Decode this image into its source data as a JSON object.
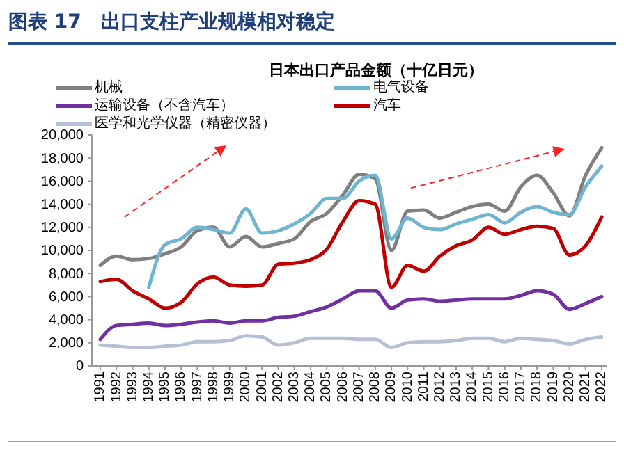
{
  "chart_data": {
    "type": "line",
    "title": "图表 17　出口支柱产业规模相对稳定",
    "subtitle": "日本出口产品金额（十亿日元）",
    "categories": [
      "1991",
      "1992",
      "1993",
      "1994",
      "1995",
      "1996",
      "1997",
      "1998",
      "1999",
      "2000",
      "2001",
      "2002",
      "2003",
      "2004",
      "2005",
      "2006",
      "2007",
      "2008",
      "2009",
      "2010",
      "2011",
      "2012",
      "2013",
      "2014",
      "2015",
      "2016",
      "2017",
      "2018",
      "2019",
      "2020",
      "2021",
      "2022"
    ],
    "series": [
      {
        "name": "机械",
        "color": "#7f7f7f",
        "values": [
          8700,
          9500,
          9200,
          9300,
          9700,
          10300,
          11700,
          12000,
          10300,
          11200,
          10300,
          10600,
          11000,
          12500,
          13200,
          14800,
          16600,
          16200,
          10000,
          13400,
          13500,
          12800,
          13300,
          13800,
          14000,
          13400,
          15500,
          16500,
          15000,
          13000,
          16500,
          18900
        ]
      },
      {
        "name": "电气设备",
        "color": "#6fb4d3",
        "values": [
          null,
          null,
          null,
          6800,
          10500,
          11000,
          12000,
          11800,
          11500,
          13600,
          11500,
          11700,
          12300,
          13200,
          14500,
          14500,
          16000,
          16500,
          11000,
          12800,
          12000,
          11800,
          12300,
          12700,
          13100,
          12400,
          13300,
          13800,
          13300,
          13100,
          15500,
          17300
        ]
      },
      {
        "name": "运输设备（不含汽车）",
        "color": "#7030a0",
        "values": [
          2300,
          3500,
          3600,
          3700,
          3500,
          3600,
          3800,
          3900,
          3700,
          3900,
          3900,
          4200,
          4300,
          4700,
          5100,
          5800,
          6500,
          6500,
          5000,
          5700,
          5800,
          5600,
          5700,
          5800,
          5800,
          5800,
          6100,
          6500,
          6200,
          4900,
          5400,
          6000
        ]
      },
      {
        "name": "汽车",
        "color": "#c00000",
        "values": [
          7300,
          7500,
          6500,
          5800,
          5000,
          5500,
          7100,
          7700,
          7000,
          6900,
          7000,
          8800,
          8900,
          9200,
          10100,
          12500,
          14300,
          14000,
          6800,
          8700,
          8200,
          9500,
          10400,
          10900,
          12000,
          11400,
          11800,
          12100,
          11900,
          9600,
          10400,
          12900
        ]
      },
      {
        "name": "医学和光学仪器（精密仪器）",
        "color": "#b4c0d6",
        "values": [
          1800,
          1700,
          1600,
          1600,
          1700,
          1800,
          2100,
          2100,
          2200,
          2600,
          2500,
          1800,
          2000,
          2400,
          2400,
          2400,
          2300,
          2300,
          1600,
          2000,
          2100,
          2100,
          2200,
          2400,
          2400,
          2100,
          2400,
          2300,
          2200,
          1900,
          2300,
          2500
        ]
      }
    ],
    "ylim": [
      0,
      20000
    ],
    "yticks": [
      {
        "value": 0,
        "label": "0"
      },
      {
        "value": 2000,
        "label": "2,000"
      },
      {
        "value": 4000,
        "label": "4,000"
      },
      {
        "value": 6000,
        "label": "6,000"
      },
      {
        "value": 8000,
        "label": "8,000"
      },
      {
        "value": 10000,
        "label": "10,000"
      },
      {
        "value": 12000,
        "label": "12,000"
      },
      {
        "value": 14000,
        "label": "14,000"
      },
      {
        "value": 16000,
        "label": "16,000"
      },
      {
        "value": 18000,
        "label": "18,000"
      },
      {
        "value": 20000,
        "label": "20,000"
      }
    ],
    "grid": false,
    "legend": "top",
    "marker": "none",
    "line_style": "solid"
  }
}
